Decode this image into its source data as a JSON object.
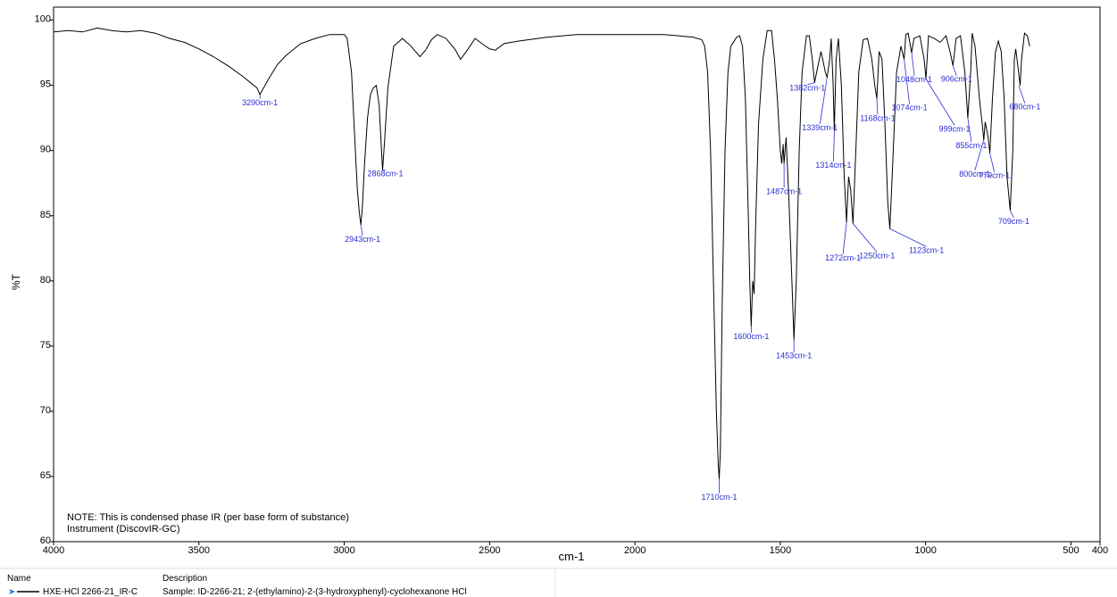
{
  "chart_data": {
    "type": "line",
    "xlabel": "cm-1",
    "ylabel": "%T",
    "notes": [
      "NOTE: This is condensed phase IR (per base form of substance)",
      "Instrument (DiscovIR-GC)"
    ],
    "xlim": [
      4000,
      400
    ],
    "ylim": [
      60,
      101
    ],
    "xticks": [
      4000,
      3500,
      3000,
      2500,
      2000,
      1500,
      1000,
      500,
      400
    ],
    "yticks": [
      60,
      65,
      70,
      75,
      80,
      85,
      90,
      95,
      100
    ],
    "color": "#000000",
    "x": [
      4000,
      3950,
      3900,
      3850,
      3800,
      3750,
      3700,
      3650,
      3600,
      3550,
      3500,
      3450,
      3400,
      3350,
      3300,
      3290,
      3260,
      3230,
      3200,
      3150,
      3100,
      3050,
      3000,
      2990,
      2975,
      2965,
      2955,
      2948,
      2943,
      2938,
      2930,
      2920,
      2910,
      2900,
      2890,
      2880,
      2873,
      2868,
      2862,
      2850,
      2830,
      2800,
      2770,
      2740,
      2720,
      2700,
      2680,
      2650,
      2620,
      2600,
      2580,
      2550,
      2520,
      2500,
      2480,
      2450,
      2400,
      2300,
      2200,
      2100,
      2000,
      1900,
      1800,
      1770,
      1760,
      1750,
      1740,
      1730,
      1720,
      1713,
      1710,
      1706,
      1700,
      1690,
      1680,
      1670,
      1650,
      1640,
      1630,
      1620,
      1610,
      1605,
      1600,
      1595,
      1590,
      1585,
      1575,
      1560,
      1545,
      1530,
      1520,
      1510,
      1500,
      1495,
      1490,
      1487,
      1480,
      1470,
      1460,
      1453,
      1445,
      1435,
      1425,
      1410,
      1400,
      1390,
      1382,
      1375,
      1360,
      1345,
      1339,
      1330,
      1325,
      1318,
      1314,
      1308,
      1300,
      1290,
      1280,
      1272,
      1265,
      1258,
      1250,
      1240,
      1230,
      1215,
      1200,
      1185,
      1175,
      1168,
      1160,
      1150,
      1140,
      1130,
      1123,
      1115,
      1100,
      1085,
      1074,
      1068,
      1060,
      1048,
      1040,
      1020,
      1005,
      999,
      990,
      970,
      950,
      930,
      915,
      906,
      895,
      880,
      865,
      855,
      845,
      840,
      830,
      815,
      805,
      800,
      795,
      785,
      779,
      770,
      760,
      750,
      740,
      730,
      720,
      709,
      700,
      695,
      690,
      680,
      675,
      670,
      660,
      650,
      642
    ],
    "values": [
      99.1,
      99.2,
      99.1,
      99.4,
      99.2,
      99.1,
      99.2,
      99.0,
      98.6,
      98.3,
      97.8,
      97.2,
      96.5,
      95.7,
      94.8,
      94.3,
      95.5,
      96.6,
      97.3,
      98.2,
      98.6,
      98.9,
      98.9,
      98.6,
      96.0,
      91.5,
      87.0,
      85.2,
      84.3,
      85.5,
      89.0,
      92.5,
      94.3,
      94.8,
      95.0,
      93.5,
      90.5,
      88.5,
      90.5,
      94.8,
      98.0,
      98.6,
      98.0,
      97.2,
      97.7,
      98.5,
      98.9,
      98.6,
      97.8,
      97.0,
      97.6,
      98.6,
      98.1,
      97.8,
      97.7,
      98.2,
      98.4,
      98.7,
      98.9,
      98.9,
      98.9,
      98.9,
      98.7,
      98.5,
      98.0,
      96.0,
      90.0,
      80.0,
      70.0,
      65.8,
      64.8,
      67.0,
      78.0,
      90.0,
      96.0,
      98.0,
      98.7,
      98.8,
      98.0,
      94.0,
      85.0,
      80.0,
      76.5,
      80.0,
      79.0,
      84.0,
      92.0,
      97.0,
      99.2,
      99.2,
      97.0,
      94.0,
      90.0,
      89.0,
      90.5,
      89.0,
      91.0,
      86.0,
      80.0,
      75.5,
      80.0,
      90.0,
      96.0,
      98.8,
      98.8,
      97.0,
      95.2,
      96.0,
      97.6,
      96.0,
      95.6,
      97.0,
      98.6,
      95.0,
      91.5,
      97.0,
      98.6,
      95.0,
      88.0,
      84.5,
      88.0,
      87.0,
      84.4,
      90.0,
      96.0,
      98.5,
      98.6,
      97.0,
      95.0,
      94.0,
      97.6,
      97.0,
      92.0,
      86.0,
      84.0,
      88.0,
      96.0,
      98.0,
      97.0,
      98.9,
      99.0,
      97.5,
      98.6,
      98.8,
      97.0,
      95.5,
      98.8,
      98.6,
      98.3,
      98.8,
      97.5,
      96.5,
      98.6,
      98.8,
      96.0,
      92.5,
      96.0,
      99.0,
      98.0,
      94.0,
      92.0,
      90.8,
      92.2,
      91.0,
      89.8,
      94.0,
      97.5,
      98.4,
      97.6,
      94.0,
      88.0,
      85.4,
      90.0,
      97.0,
      97.8,
      96.0,
      95.0,
      97.0,
      99.0,
      98.8,
      98.0
    ],
    "annotations": [
      {
        "text": "3290cm-1",
        "x": 3290,
        "y": 94.3
      },
      {
        "text": "2943cm-1",
        "x": 2943,
        "y": 84.3
      },
      {
        "text": "2868cm-1",
        "x": 2868,
        "y": 88.5
      },
      {
        "text": "1710cm-1",
        "x": 1710,
        "y": 64.8
      },
      {
        "text": "1600cm-1",
        "x": 1600,
        "y": 76.5
      },
      {
        "text": "1453cm-1",
        "x": 1453,
        "y": 75.5
      },
      {
        "text": "1487cm-1",
        "x": 1487,
        "y": 89
      },
      {
        "text": "1382cm-1",
        "x": 1382,
        "y": 95.2
      },
      {
        "text": "1339cm-1",
        "x": 1339,
        "y": 95.6
      },
      {
        "text": "1314cm-1",
        "x": 1314,
        "y": 91.5
      },
      {
        "text": "1272cm-1",
        "x": 1272,
        "y": 84.5
      },
      {
        "text": "1250cm-1",
        "x": 1250,
        "y": 84.4
      },
      {
        "text": "1168cm-1",
        "x": 1168,
        "y": 94
      },
      {
        "text": "1123cm-1",
        "x": 1123,
        "y": 84
      },
      {
        "text": "1074cm-1",
        "x": 1074,
        "y": 97
      },
      {
        "text": "1048cm-1",
        "x": 1048,
        "y": 97.5
      },
      {
        "text": "999cm-1",
        "x": 999,
        "y": 95.5
      },
      {
        "text": "906cm-1",
        "x": 906,
        "y": 96.5
      },
      {
        "text": "855cm-1",
        "x": 855,
        "y": 92.5
      },
      {
        "text": "800cm-1",
        "x": 800,
        "y": 90.8
      },
      {
        "text": "779cm-1",
        "x": 779,
        "y": 89.8
      },
      {
        "text": "709cm-1",
        "x": 709,
        "y": 85.4
      },
      {
        "text": "680cm-1",
        "x": 680,
        "y": 95
      }
    ],
    "table": {
      "headers": [
        "Name",
        "Description"
      ],
      "row": [
        "HXE-HCl 2266-21_IR-C",
        "Sample: ID-2266-21; 2-(ethylamino)-2-(3-hydroxyphenyl)-cyclohexanone HCl"
      ]
    }
  }
}
